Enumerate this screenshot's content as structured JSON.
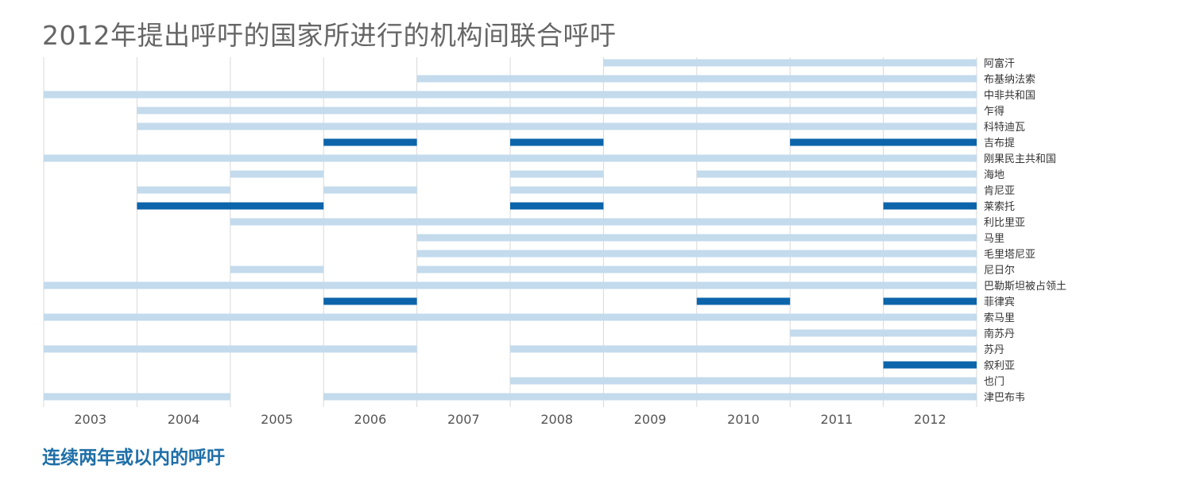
{
  "title": "2012年提出呼吁的国家所进行的机构间联合呼吁",
  "legend_note": "连续两年或以内的呼吁",
  "colors": {
    "regular": "#c3dbec",
    "consecutive": "#0c65aa",
    "grid": "#d8d8d8",
    "label": "#333333"
  },
  "chart_data": {
    "type": "timeline",
    "title": "2012年提出呼吁的国家所进行的机构间联合呼吁",
    "years": [
      "2003",
      "2004",
      "2005",
      "2006",
      "2007",
      "2008",
      "2009",
      "2010",
      "2011",
      "2012"
    ],
    "legend": [
      {
        "label": "连续两年或以内的呼吁",
        "color": "#0c65aa"
      }
    ],
    "rows": [
      {
        "country": "阿富汗",
        "segments": [
          {
            "start": 2009,
            "end": 2012,
            "style": "regular"
          }
        ]
      },
      {
        "country": "布基纳法索",
        "segments": [
          {
            "start": 2007,
            "end": 2012,
            "style": "regular"
          }
        ]
      },
      {
        "country": "中非共和国",
        "segments": [
          {
            "start": 2003,
            "end": 2012,
            "style": "regular"
          }
        ]
      },
      {
        "country": "乍得",
        "segments": [
          {
            "start": 2004,
            "end": 2012,
            "style": "regular"
          }
        ]
      },
      {
        "country": "科特迪瓦",
        "segments": [
          {
            "start": 2004,
            "end": 2012,
            "style": "regular"
          }
        ]
      },
      {
        "country": "吉布提",
        "segments": [
          {
            "start": 2006,
            "end": 2006,
            "style": "consecutive"
          },
          {
            "start": 2008,
            "end": 2008,
            "style": "consecutive"
          },
          {
            "start": 2011,
            "end": 2012,
            "style": "consecutive"
          }
        ]
      },
      {
        "country": "刚果民主共和国",
        "segments": [
          {
            "start": 2003,
            "end": 2012,
            "style": "regular"
          }
        ]
      },
      {
        "country": "海地",
        "segments": [
          {
            "start": 2005,
            "end": 2005,
            "style": "regular"
          },
          {
            "start": 2008,
            "end": 2008,
            "style": "regular"
          },
          {
            "start": 2010,
            "end": 2012,
            "style": "regular"
          }
        ]
      },
      {
        "country": "肯尼亚",
        "segments": [
          {
            "start": 2004,
            "end": 2004,
            "style": "regular"
          },
          {
            "start": 2006,
            "end": 2006,
            "style": "regular"
          },
          {
            "start": 2008,
            "end": 2012,
            "style": "regular"
          }
        ]
      },
      {
        "country": "莱索托",
        "segments": [
          {
            "start": 2004,
            "end": 2005,
            "style": "consecutive"
          },
          {
            "start": 2008,
            "end": 2008,
            "style": "consecutive"
          },
          {
            "start": 2012,
            "end": 2012,
            "style": "consecutive"
          }
        ]
      },
      {
        "country": "利比里亚",
        "segments": [
          {
            "start": 2005,
            "end": 2012,
            "style": "regular"
          }
        ]
      },
      {
        "country": "马里",
        "segments": [
          {
            "start": 2007,
            "end": 2012,
            "style": "regular"
          }
        ]
      },
      {
        "country": "毛里塔尼亚",
        "segments": [
          {
            "start": 2007,
            "end": 2012,
            "style": "regular"
          }
        ]
      },
      {
        "country": "尼日尔",
        "segments": [
          {
            "start": 2005,
            "end": 2005,
            "style": "regular"
          },
          {
            "start": 2007,
            "end": 2012,
            "style": "regular"
          }
        ]
      },
      {
        "country": "巴勒斯坦被占领土",
        "segments": [
          {
            "start": 2003,
            "end": 2012,
            "style": "regular"
          }
        ]
      },
      {
        "country": "菲律宾",
        "segments": [
          {
            "start": 2006,
            "end": 2006,
            "style": "consecutive"
          },
          {
            "start": 2010,
            "end": 2010,
            "style": "consecutive"
          },
          {
            "start": 2012,
            "end": 2012,
            "style": "consecutive"
          }
        ]
      },
      {
        "country": "索马里",
        "segments": [
          {
            "start": 2003,
            "end": 2012,
            "style": "regular"
          }
        ]
      },
      {
        "country": "南苏丹",
        "segments": [
          {
            "start": 2011,
            "end": 2012,
            "style": "regular"
          }
        ]
      },
      {
        "country": "苏丹",
        "segments": [
          {
            "start": 2003,
            "end": 2006,
            "style": "regular"
          },
          {
            "start": 2008,
            "end": 2012,
            "style": "regular"
          }
        ]
      },
      {
        "country": "叙利亚",
        "segments": [
          {
            "start": 2012,
            "end": 2012,
            "style": "consecutive"
          }
        ]
      },
      {
        "country": "也门",
        "segments": [
          {
            "start": 2008,
            "end": 2012,
            "style": "regular"
          }
        ]
      },
      {
        "country": "津巴布韦",
        "segments": [
          {
            "start": 2003,
            "end": 2004,
            "style": "regular"
          },
          {
            "start": 2006,
            "end": 2012,
            "style": "regular"
          }
        ]
      }
    ]
  }
}
